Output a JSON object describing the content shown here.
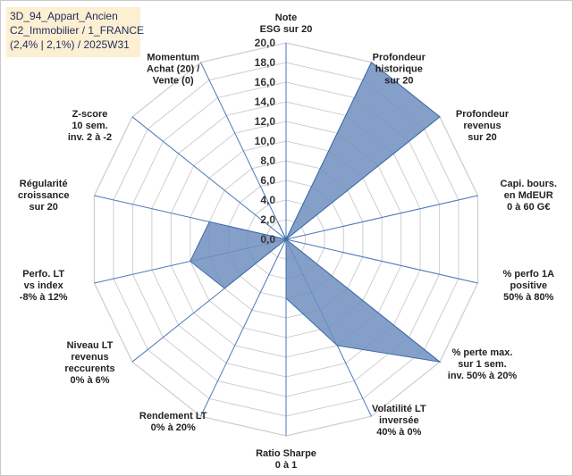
{
  "header": {
    "line1": "3D_94_Appart_Ancien",
    "line2": "C2_Immobilier / 1_FRANCE",
    "line3": "(2,4% | 2,1%) / 2025W31"
  },
  "chart_data": {
    "type": "radar",
    "range": [
      0,
      20
    ],
    "tick_step": 2,
    "tick_labels": [
      "0,0",
      "2,0",
      "4,0",
      "6,0",
      "8,0",
      "10,0",
      "12,0",
      "14,0",
      "16,0",
      "18,0",
      "20,0"
    ],
    "fill_color": "#6f8fbf",
    "line_color": "#3e6aa8",
    "grid_color": "#cfcfcf",
    "spoke_color": "#4a76b8",
    "axes": [
      {
        "label": [
          "Note",
          "ESG sur 20"
        ],
        "value": 0
      },
      {
        "label": [
          "Profondeur",
          "historique",
          "sur 20"
        ],
        "value": 20
      },
      {
        "label": [
          "Profondeur",
          "revenus",
          "sur 20"
        ],
        "value": 20
      },
      {
        "label": [
          "Capi. bours.",
          "en MdEUR",
          "0 à 60 G€"
        ],
        "value": 0
      },
      {
        "label": [
          "% perfo 1A",
          "positive",
          "50% à 80%"
        ],
        "value": 0
      },
      {
        "label": [
          "% perte max.",
          "sur 1 sem.",
          "inv. 50% à 20%"
        ],
        "value": 20
      },
      {
        "label": [
          "Volatilité LT",
          "inversée",
          "40% à 0%"
        ],
        "value": 12
      },
      {
        "label": [
          "Ratio Sharpe",
          "0 à 1"
        ],
        "value": 6
      },
      {
        "label": [
          "Rendement LT",
          "0% à 20%"
        ],
        "value": 0
      },
      {
        "label": [
          "Niveau LT",
          "revenus",
          "reccurents",
          "0% à 6%"
        ],
        "value": 8
      },
      {
        "label": [
          "Perfo. LT",
          "vs index",
          "-8% à 12%"
        ],
        "value": 10
      },
      {
        "label": [
          "Régularité",
          "croissance",
          "sur 20"
        ],
        "value": 8
      },
      {
        "label": [
          "Z-score",
          "10 sem.",
          "inv. 2 à -2"
        ],
        "value": 0
      },
      {
        "label": [
          "Momentum",
          "Achat (20) /",
          "Vente (0)"
        ],
        "value": 2
      }
    ]
  }
}
